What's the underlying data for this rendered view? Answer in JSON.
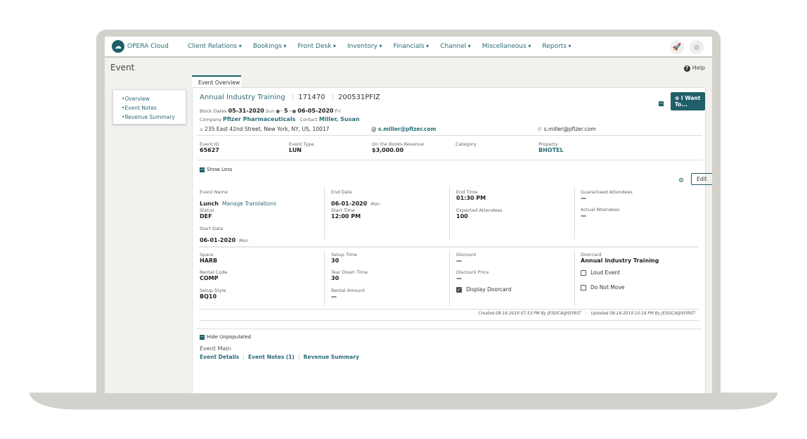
{
  "app": {
    "name": "OPERA Cloud"
  },
  "nav": {
    "menus": [
      "Client Relations",
      "Bookings",
      "Front Desk",
      "Inventory",
      "Financials",
      "Channel",
      "Miscellaneous",
      "Reports"
    ]
  },
  "page": {
    "title": "Event",
    "help": "Help"
  },
  "sidenav": {
    "items": [
      "Overview",
      "Event Notes",
      "Revenue Summary"
    ]
  },
  "tab": {
    "label": "Event Overview"
  },
  "event": {
    "name": "Annual Industry Training",
    "number": "171470",
    "block": "200531PFIZ",
    "block_dates_label": "Block Dates",
    "start": "05-31-2020",
    "start_day": "Sun",
    "nights": "5",
    "end": "06-05-2020",
    "end_day": "Fri",
    "company_label": "Company",
    "company": "Pfizer Pharmaceuticals",
    "contact_label": "Contact",
    "contact": "Miller, Susan",
    "address": "235 East 42nd Street, New York, NY, US, 10017",
    "email": "s.miller@pfizer.com",
    "phone": "s.miller@pfizer.com",
    "i_want_to": "I Want To..."
  },
  "summary": [
    {
      "label": "Event ID",
      "value": "65627"
    },
    {
      "label": "Event Type",
      "value": "LUN"
    },
    {
      "label": "On the Books Revenue",
      "value": "$3,000.00"
    },
    {
      "label": "Category",
      "value": ""
    },
    {
      "label": "Property",
      "value": "BHOTEL"
    }
  ],
  "show_less": "Show Less",
  "edit": "Edit",
  "details": {
    "event_name_label": "Event Name",
    "event_name": "Lunch",
    "manage_translations": "Manage Translations",
    "status_label": "Status",
    "status": "DEF",
    "start_date_label": "Start Date",
    "start_date": "06-01-2020",
    "start_date_day": "Mon",
    "end_date_label": "End Date",
    "end_date": "06-01-2020",
    "end_date_day": "Mon",
    "start_time_label": "Start Time",
    "start_time": "12:00 PM",
    "end_time_label": "End Time",
    "end_time": "01:30 PM",
    "expected_label": "Expected Attendees",
    "expected": "100",
    "guaranteed_label": "Guaranteed Attendees",
    "guaranteed": "—",
    "actual_label": "Actual Attendees",
    "actual": "—",
    "space_label": "Space",
    "space": "HARB",
    "rental_code_label": "Rental Code",
    "rental_code": "COMP",
    "setup_style_label": "Setup Style",
    "setup_style": "BQ10",
    "setup_time_label": "Setup Time",
    "setup_time": "30",
    "teardown_label": "Tear Down Time",
    "teardown": "30",
    "rental_amount_label": "Rental Amount",
    "rental_amount": "—",
    "discount_label": "Discount",
    "discount": "—",
    "discount_price_label": "Discount Price",
    "discount_price": "—",
    "display_doorcard": "Display Doorcard",
    "display_doorcard_checked": true,
    "doorcard_label": "Doorcard",
    "doorcard": "Annual Industry Training",
    "loud_event": "Loud Event",
    "do_not_move": "Do Not Move"
  },
  "audit": {
    "created": "Created 08-16-2019 07:53 PM By JESSICA@SFIRST",
    "updated": "Updated 08-16-2019 10:18 PM By JESSICA@SFIRST"
  },
  "hide_unpopulated": "Hide Unpopulated",
  "event_main": {
    "title": "Event Main",
    "links": [
      "Event Details",
      "Event Notes (1)",
      "Revenue Summary"
    ]
  }
}
